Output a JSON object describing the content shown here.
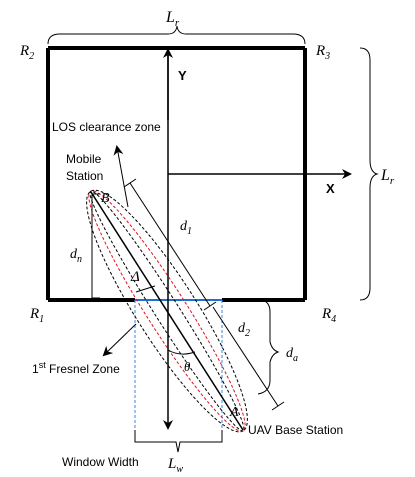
{
  "labels": {
    "top_width": "L",
    "top_width_sub": "r",
    "right_height": "L",
    "right_height_sub": "r",
    "corner_r1": "R",
    "corner_r1_sub": "1",
    "corner_r2": "R",
    "corner_r2_sub": "2",
    "corner_r3": "R",
    "corner_r3_sub": "3",
    "corner_r4": "R",
    "corner_r4_sub": "4",
    "y_axis": "Y",
    "x_axis": "X",
    "los_zone": "LOS clearance zone",
    "mobile_line1": "Mobile",
    "mobile_line2": "Station",
    "point_b": "B",
    "point_a": "A",
    "d1": "d",
    "d1_sub": "1",
    "d2": "d",
    "d2_sub": "2",
    "dn": "d",
    "dn_sub": "n",
    "da": "d",
    "da_sub": "a",
    "delta": "Δ",
    "theta": "θ",
    "fresnel_prefix": "1",
    "fresnel_sup": "st",
    "fresnel_text": " Fresnel Zone",
    "uav": "UAV Base Station",
    "window_width": "Window Width",
    "lw": "L",
    "lw_sub": "w"
  },
  "colors": {
    "wall": "#000000",
    "window": "#1f6fd1",
    "window_dashed": "#3a86e0",
    "fresnel_red": "#e0101e",
    "ellipse_black": "#000000"
  }
}
